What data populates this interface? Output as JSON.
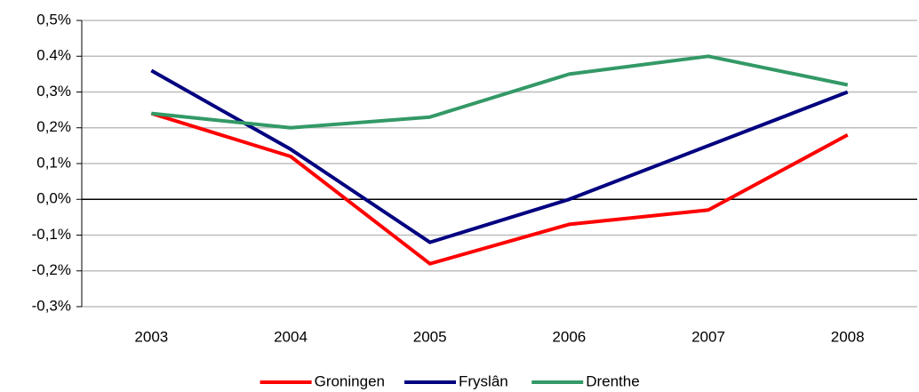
{
  "chart_data": {
    "type": "line",
    "categories": [
      "2003",
      "2004",
      "2005",
      "2006",
      "2007",
      "2008"
    ],
    "series": [
      {
        "name": "Groningen",
        "color": "#ff0000",
        "values": [
          0.24,
          0.12,
          -0.18,
          -0.07,
          -0.03,
          0.18
        ]
      },
      {
        "name": "Fryslân",
        "color": "#000080",
        "values": [
          0.36,
          0.14,
          -0.12,
          0.0,
          0.15,
          0.3
        ]
      },
      {
        "name": "Drenthe",
        "color": "#339966",
        "values": [
          0.24,
          0.2,
          0.23,
          0.35,
          0.4,
          0.32
        ]
      }
    ],
    "ylim": [
      -0.3,
      0.5
    ],
    "yticks": [
      {
        "value": -0.3,
        "label": "-0,3%"
      },
      {
        "value": -0.2,
        "label": "-0,2%"
      },
      {
        "value": -0.1,
        "label": "-0,1%"
      },
      {
        "value": 0,
        "label": "0,0%"
      },
      {
        "value": 0.1,
        "label": "0,1%"
      },
      {
        "value": 0.2,
        "label": "0,2%"
      },
      {
        "value": 0.3,
        "label": "0,3%"
      },
      {
        "value": 0.4,
        "label": "0.4%"
      },
      {
        "value": 0.5,
        "label": "0,5%"
      }
    ],
    "grid": true,
    "legend": "bottom"
  }
}
